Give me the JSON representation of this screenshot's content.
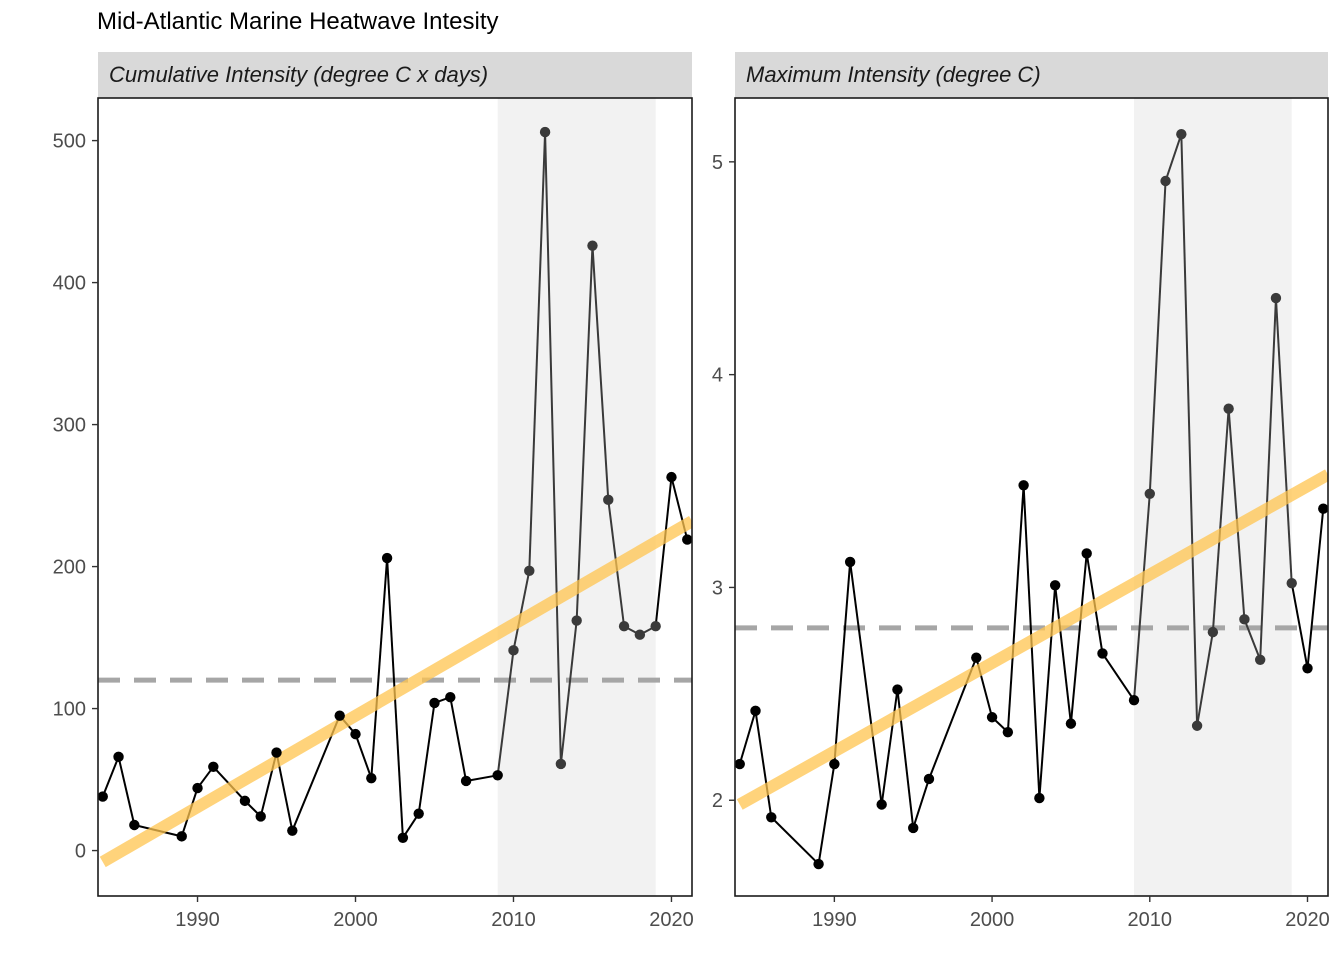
{
  "title": "Mid-Atlantic Marine Heatwave Intesity",
  "colors": {
    "line": "#000000",
    "trend": "#FFC44F",
    "mean": "#A6A6A6",
    "highlight_region": "#F2F2F2",
    "strip": "#D9D9D9"
  },
  "chart_data": [
    {
      "type": "line",
      "strip_label": "Cumulative Intensity (degree C x days)",
      "xlim": [
        1983.7,
        2021.3
      ],
      "ylim": [
        -32,
        530
      ],
      "x_ticks": [
        1990,
        2000,
        2010,
        2020
      ],
      "y_ticks": [
        0,
        100,
        200,
        300,
        400,
        500
      ],
      "highlight_x": [
        2009,
        2019
      ],
      "mean_line": 120,
      "trend_line": {
        "x": [
          1984,
          2021.3
        ],
        "y": [
          -8,
          232
        ]
      },
      "points": [
        {
          "x": 1984,
          "y": 38
        },
        {
          "x": 1985,
          "y": 66
        },
        {
          "x": 1986,
          "y": 18
        },
        {
          "x": 1989,
          "y": 10
        },
        {
          "x": 1990,
          "y": 44
        },
        {
          "x": 1991,
          "y": 59
        },
        {
          "x": 1993,
          "y": 35
        },
        {
          "x": 1994,
          "y": 24
        },
        {
          "x": 1995,
          "y": 69
        },
        {
          "x": 1996,
          "y": 14
        },
        {
          "x": 1999,
          "y": 95
        },
        {
          "x": 2000,
          "y": 82
        },
        {
          "x": 2001,
          "y": 51
        },
        {
          "x": 2002,
          "y": 206
        },
        {
          "x": 2003,
          "y": 9
        },
        {
          "x": 2004,
          "y": 26
        },
        {
          "x": 2005,
          "y": 104
        },
        {
          "x": 2006,
          "y": 108
        },
        {
          "x": 2007,
          "y": 49
        },
        {
          "x": 2009,
          "y": 53
        },
        {
          "x": 2010,
          "y": 141
        },
        {
          "x": 2011,
          "y": 197
        },
        {
          "x": 2012,
          "y": 506
        },
        {
          "x": 2013,
          "y": 61
        },
        {
          "x": 2014,
          "y": 162
        },
        {
          "x": 2015,
          "y": 426
        },
        {
          "x": 2016,
          "y": 247
        },
        {
          "x": 2017,
          "y": 158
        },
        {
          "x": 2018,
          "y": 152
        },
        {
          "x": 2019,
          "y": 158
        },
        {
          "x": 2020,
          "y": 263
        },
        {
          "x": 2021,
          "y": 219
        }
      ]
    },
    {
      "type": "line",
      "strip_label": "Maximum Intensity (degree C)",
      "xlim": [
        1983.7,
        2021.3
      ],
      "ylim": [
        1.55,
        5.3
      ],
      "x_ticks": [
        1990,
        2000,
        2010,
        2020
      ],
      "y_ticks": [
        2,
        3,
        4,
        5
      ],
      "highlight_x": [
        2009,
        2019
      ],
      "mean_line": 2.81,
      "trend_line": {
        "x": [
          1984,
          2021.3
        ],
        "y": [
          1.98,
          3.53
        ]
      },
      "points": [
        {
          "x": 1984,
          "y": 2.17
        },
        {
          "x": 1985,
          "y": 2.42
        },
        {
          "x": 1986,
          "y": 1.92
        },
        {
          "x": 1989,
          "y": 1.7
        },
        {
          "x": 1990,
          "y": 2.17
        },
        {
          "x": 1991,
          "y": 3.12
        },
        {
          "x": 1993,
          "y": 1.98
        },
        {
          "x": 1994,
          "y": 2.52
        },
        {
          "x": 1995,
          "y": 1.87
        },
        {
          "x": 1996,
          "y": 2.1
        },
        {
          "x": 1999,
          "y": 2.67
        },
        {
          "x": 2000,
          "y": 2.39
        },
        {
          "x": 2001,
          "y": 2.32
        },
        {
          "x": 2002,
          "y": 3.48
        },
        {
          "x": 2003,
          "y": 2.01
        },
        {
          "x": 2004,
          "y": 3.01
        },
        {
          "x": 2005,
          "y": 2.36
        },
        {
          "x": 2006,
          "y": 3.16
        },
        {
          "x": 2007,
          "y": 2.69
        },
        {
          "x": 2009,
          "y": 2.47
        },
        {
          "x": 2010,
          "y": 3.44
        },
        {
          "x": 2011,
          "y": 4.91
        },
        {
          "x": 2012,
          "y": 5.13
        },
        {
          "x": 2013,
          "y": 2.35
        },
        {
          "x": 2014,
          "y": 2.79
        },
        {
          "x": 2015,
          "y": 3.84
        },
        {
          "x": 2016,
          "y": 2.85
        },
        {
          "x": 2017,
          "y": 2.66
        },
        {
          "x": 2018,
          "y": 4.36
        },
        {
          "x": 2019,
          "y": 3.02
        },
        {
          "x": 2020,
          "y": 2.62
        },
        {
          "x": 2021,
          "y": 3.37
        }
      ]
    }
  ]
}
